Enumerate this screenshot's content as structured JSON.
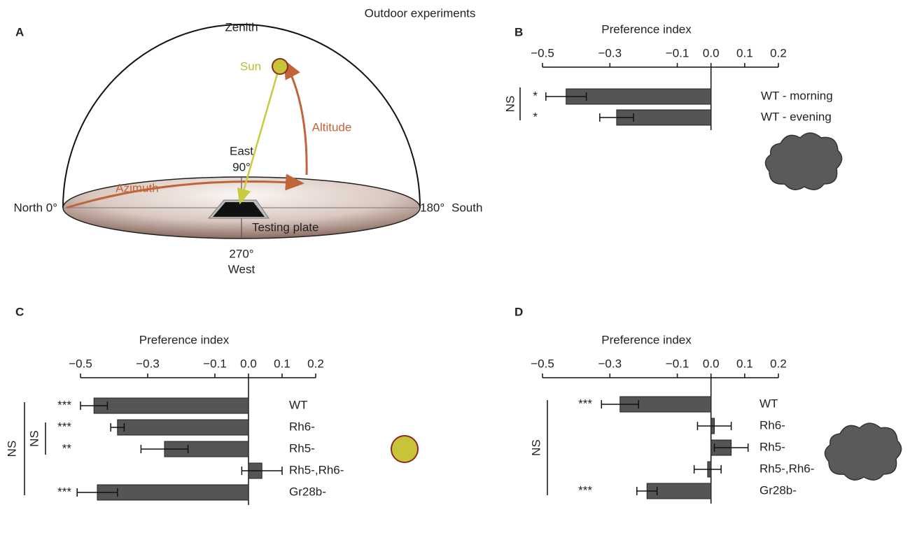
{
  "title": "Outdoor experiments",
  "diagram": {
    "panel": "A",
    "labels": {
      "zenith": "Zenith",
      "sun": "Sun",
      "altitude": "Altitude",
      "east": "East",
      "east_deg": "90°",
      "azimuth": "Azimuth",
      "north": "North 0°",
      "south_deg": "180°",
      "south": "South",
      "plate": "Testing plate",
      "west_deg": "270°",
      "west": "West"
    }
  },
  "chart_data": [
    {
      "type": "bar",
      "orientation": "horizontal",
      "panel": "B",
      "xlabel": "Preference index",
      "color": "#555555",
      "categories": [
        "WT - morning",
        "WT - evening"
      ],
      "values": [
        -0.43,
        -0.28
      ],
      "errors": [
        0.06,
        0.05
      ],
      "significance": [
        "*",
        "*"
      ],
      "annotations": [
        "NS"
      ],
      "xlim": [
        -0.5,
        0.2
      ],
      "xticks": [
        {
          "value": -0.5,
          "label": "−0.5"
        },
        {
          "value": -0.3,
          "label": "−0.3"
        },
        {
          "value": -0.1,
          "label": "−0.1"
        },
        {
          "value": 0,
          "label": "0.0"
        },
        0.1,
        0.2
      ]
    },
    {
      "type": "bar",
      "orientation": "horizontal",
      "panel": "C",
      "xlabel": "Preference index",
      "color": "#555555",
      "categories": [
        "WT",
        "Rh6-",
        "Rh5-",
        "Rh5-,Rh6-",
        "Gr28b-"
      ],
      "values": [
        -0.46,
        -0.39,
        -0.25,
        0.04,
        -0.45
      ],
      "errors": [
        0.04,
        0.02,
        0.07,
        0.06,
        0.06
      ],
      "significance": [
        "***",
        "***",
        "**",
        null,
        "***"
      ],
      "annotations": [
        "NS",
        "NS"
      ],
      "xlim": [
        -0.5,
        0.2
      ],
      "xticks": [
        {
          "value": -0.5,
          "label": "−0.5"
        },
        {
          "value": -0.3,
          "label": "−0.3"
        },
        {
          "value": -0.1,
          "label": "−0.1"
        },
        {
          "value": 0,
          "label": "0.0"
        },
        0.1,
        0.2
      ]
    },
    {
      "type": "bar",
      "orientation": "horizontal",
      "panel": "D",
      "xlabel": "Preference index",
      "color": "#555555",
      "categories": [
        "WT",
        "Rh6-",
        "Rh5-",
        "Rh5-,Rh6-",
        "Gr28b-"
      ],
      "values": [
        -0.27,
        0.01,
        0.06,
        -0.01,
        -0.19
      ],
      "errors": [
        0.055,
        0.05,
        0.05,
        0.04,
        0.03
      ],
      "significance": [
        "***",
        null,
        null,
        null,
        "***"
      ],
      "annotations": [
        "NS"
      ],
      "xlim": [
        -0.5,
        0.2
      ],
      "xticks": [
        {
          "value": -0.5,
          "label": "−0.5"
        },
        {
          "value": -0.3,
          "label": "−0.3"
        },
        {
          "value": -0.1,
          "label": "−0.1"
        },
        {
          "value": 0,
          "label": "0.0"
        },
        0.1,
        0.2
      ]
    }
  ]
}
